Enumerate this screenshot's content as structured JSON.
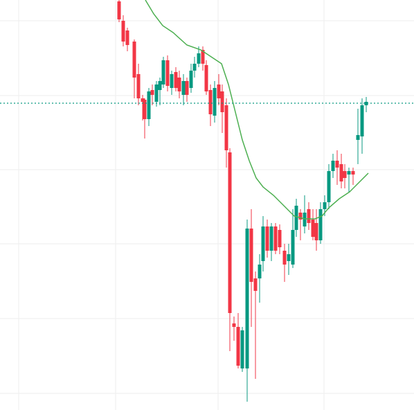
{
  "chart_data": {
    "type": "candlestick",
    "xlim": [
      0,
      598
    ],
    "ylim": [
      0,
      592
    ],
    "xticks": [
      27,
      167,
      315,
      468
    ],
    "yticks": [
      562,
      454,
      347,
      240,
      132,
      24
    ],
    "grid": true,
    "up_color": "#089981",
    "down_color": "#f23645",
    "x": [
      172,
      178,
      184,
      194,
      200,
      206,
      209,
      215,
      220,
      226,
      231,
      236,
      242,
      248,
      254,
      259,
      265,
      270,
      276,
      281,
      287,
      293,
      298,
      304,
      310,
      316,
      321,
      327,
      332,
      338,
      344,
      350,
      357,
      363,
      369,
      375,
      380,
      386,
      392,
      398,
      404,
      411,
      417,
      423,
      428,
      434,
      440,
      446,
      452,
      457,
      463,
      469,
      475,
      481,
      487,
      493,
      498,
      504,
      510,
      517,
      523,
      529
    ],
    "open": [
      590,
      562,
      548,
      532,
      485,
      450,
      448,
      420,
      462,
      445,
      462,
      470,
      505,
      465,
      488,
      480,
      455,
      475,
      465,
      490,
      500,
      520,
      498,
      462,
      425,
      470,
      460,
      440,
      372,
      125,
      120,
      60,
      60,
      262,
      190,
      190,
      215,
      265,
      230,
      265,
      260,
      230,
      215,
      210,
      260,
      285,
      265,
      290,
      275,
      270,
      245,
      290,
      300,
      345,
      360,
      355,
      345,
      340,
      345,
      390,
      395,
      440
    ],
    "high": [
      592,
      570,
      552,
      535,
      500,
      455,
      450,
      465,
      470,
      475,
      480,
      510,
      512,
      490,
      495,
      490,
      485,
      480,
      500,
      510,
      525,
      525,
      505,
      470,
      475,
      485,
      470,
      450,
      378,
      135,
      140,
      120,
      275,
      290,
      200,
      225,
      280,
      275,
      270,
      270,
      268,
      240,
      240,
      290,
      305,
      290,
      310,
      300,
      290,
      290,
      300,
      310,
      355,
      370,
      375,
      370,
      355,
      350,
      350,
      435,
      450,
      452
    ],
    "low": [
      560,
      525,
      518,
      450,
      440,
      418,
      392,
      410,
      440,
      438,
      440,
      465,
      460,
      455,
      460,
      450,
      440,
      445,
      458,
      480,
      495,
      490,
      455,
      410,
      415,
      440,
      400,
      350,
      85,
      100,
      60,
      55,
      12,
      120,
      45,
      155,
      200,
      220,
      215,
      225,
      225,
      185,
      195,
      205,
      250,
      245,
      255,
      260,
      245,
      230,
      240,
      280,
      290,
      335,
      325,
      320,
      320,
      315,
      325,
      355,
      370,
      430
    ],
    "close": [
      564,
      532,
      527,
      480,
      450,
      445,
      420,
      460,
      455,
      470,
      475,
      505,
      468,
      485,
      465,
      460,
      475,
      455,
      490,
      500,
      515,
      500,
      460,
      427,
      465,
      450,
      430,
      375,
      140,
      120,
      64,
      115,
      262,
      185,
      172,
      210,
      265,
      230,
      265,
      230,
      235,
      210,
      225,
      260,
      295,
      275,
      285,
      270,
      250,
      245,
      290,
      300,
      345,
      360,
      350,
      330,
      335,
      345,
      340,
      397,
      440,
      445
    ],
    "price_line": {
      "value": 443,
      "color": "#089981"
    },
    "line": {
      "color": "#4caf50",
      "x": [
        210,
        222,
        235,
        250,
        270,
        290,
        305,
        320,
        330,
        340,
        350,
        360,
        370,
        380,
        395,
        410,
        425,
        440,
        455,
        465,
        475,
        490,
        505,
        520,
        532
      ],
      "values": [
        592,
        572,
        555,
        545,
        527,
        520,
        510,
        500,
        470,
        430,
        390,
        360,
        335,
        322,
        310,
        295,
        280,
        276,
        276,
        280,
        292,
        305,
        315,
        330,
        342
      ]
    }
  }
}
